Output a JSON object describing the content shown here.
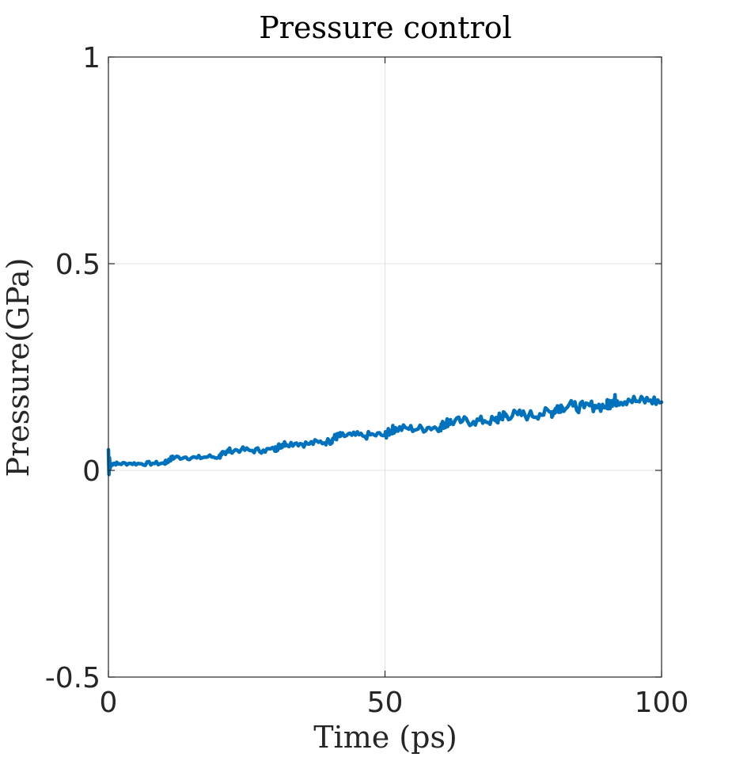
{
  "chart_data": {
    "type": "line",
    "title": "Pressure control",
    "xlabel": "Time (ps)",
    "ylabel": "Pressure(GPa)",
    "xlim": [
      0,
      100
    ],
    "ylim": [
      -0.5,
      1
    ],
    "xticks": [
      0,
      50,
      100
    ],
    "xtick_labels": [
      "0",
      "50",
      "100"
    ],
    "yticks": [
      -0.5,
      0,
      0.5,
      1
    ],
    "ytick_labels": [
      "-0.5",
      "0",
      "0.5",
      "1"
    ],
    "grid": true,
    "legend": "none",
    "series_color": "#0072bd",
    "series": [
      {
        "x": [
          0,
          0.1,
          0.2,
          0.3,
          0.5,
          1,
          2,
          4,
          6,
          8,
          10,
          10.5,
          11,
          11.5,
          12,
          14,
          16,
          18,
          20,
          20.5,
          21,
          21.5,
          22,
          24,
          26,
          28,
          30,
          30.5,
          31,
          31.5,
          32,
          34,
          36,
          38,
          40,
          40.5,
          41,
          41.5,
          42,
          44,
          46,
          48,
          50,
          50.5,
          51,
          51.5,
          52,
          54,
          56,
          58,
          60,
          60.5,
          61,
          61.5,
          62,
          64,
          66,
          68,
          70,
          70.5,
          71,
          71.5,
          72,
          74,
          76,
          78,
          80,
          80.5,
          81,
          81.5,
          82,
          84,
          86,
          88,
          90,
          90.5,
          91,
          91.5,
          92,
          94,
          96,
          98,
          100
        ],
        "y": [
          0.05,
          -0.01,
          0.03,
          0.005,
          0.015,
          0.017,
          0.016,
          0.017,
          0.016,
          0.017,
          0.017,
          0.02,
          0.025,
          0.03,
          0.031,
          0.032,
          0.03,
          0.033,
          0.033,
          0.038,
          0.043,
          0.048,
          0.048,
          0.05,
          0.048,
          0.049,
          0.05,
          0.055,
          0.06,
          0.063,
          0.065,
          0.066,
          0.064,
          0.068,
          0.07,
          0.075,
          0.08,
          0.082,
          0.083,
          0.085,
          0.083,
          0.086,
          0.085,
          0.09,
          0.095,
          0.1,
          0.1,
          0.102,
          0.1,
          0.104,
          0.105,
          0.11,
          0.115,
          0.118,
          0.117,
          0.119,
          0.118,
          0.12,
          0.12,
          0.125,
          0.13,
          0.134,
          0.133,
          0.135,
          0.133,
          0.137,
          0.14,
          0.143,
          0.15,
          0.155,
          0.154,
          0.156,
          0.152,
          0.157,
          0.155,
          0.162,
          0.168,
          0.17,
          0.168,
          0.172,
          0.166,
          0.17,
          0.165
        ]
      }
    ]
  }
}
